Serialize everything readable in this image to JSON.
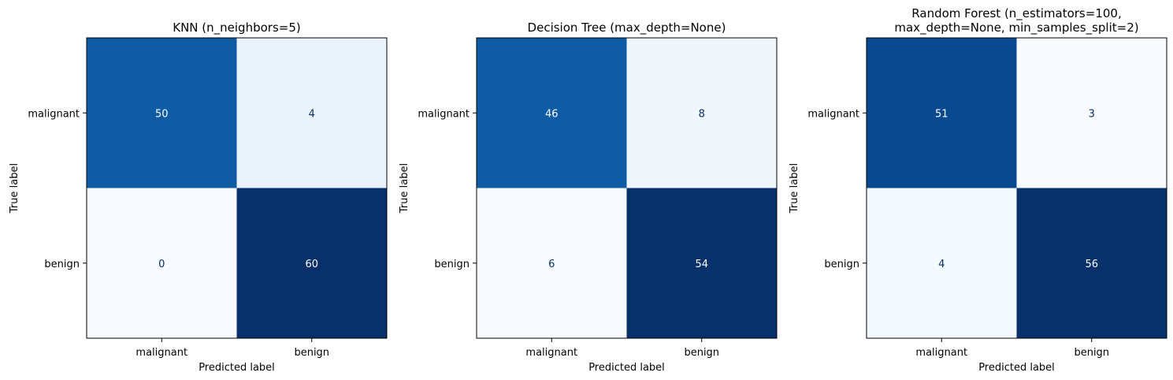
{
  "chart_data": [
    {
      "type": "heatmap",
      "title": [
        "KNN (n_neighbors=5)"
      ],
      "xlabel": "Predicted label",
      "ylabel": "True label",
      "x_categories": [
        "malignant",
        "benign"
      ],
      "y_categories": [
        "malignant",
        "benign"
      ],
      "values": [
        [
          50,
          4
        ],
        [
          0,
          60
        ]
      ],
      "colormap": "Blues",
      "grid": false
    },
    {
      "type": "heatmap",
      "title": [
        "Decision Tree (max_depth=None)"
      ],
      "xlabel": "Predicted label",
      "ylabel": "True label",
      "x_categories": [
        "malignant",
        "benign"
      ],
      "y_categories": [
        "malignant",
        "benign"
      ],
      "values": [
        [
          46,
          8
        ],
        [
          6,
          54
        ]
      ],
      "colormap": "Blues",
      "grid": false
    },
    {
      "type": "heatmap",
      "title": [
        "Random Forest (n_estimators=100,",
        "max_depth=None, min_samples_split=2)"
      ],
      "xlabel": "Predicted label",
      "ylabel": "True label",
      "x_categories": [
        "malignant",
        "benign"
      ],
      "y_categories": [
        "malignant",
        "benign"
      ],
      "values": [
        [
          51,
          3
        ],
        [
          4,
          56
        ]
      ],
      "colormap": "Blues",
      "grid": false
    }
  ],
  "colors": {
    "blues_light": "#f7fbff",
    "blues_dark": "#08306b",
    "text_on_light": "#08306b",
    "text_on_dark": "#ffffff"
  }
}
